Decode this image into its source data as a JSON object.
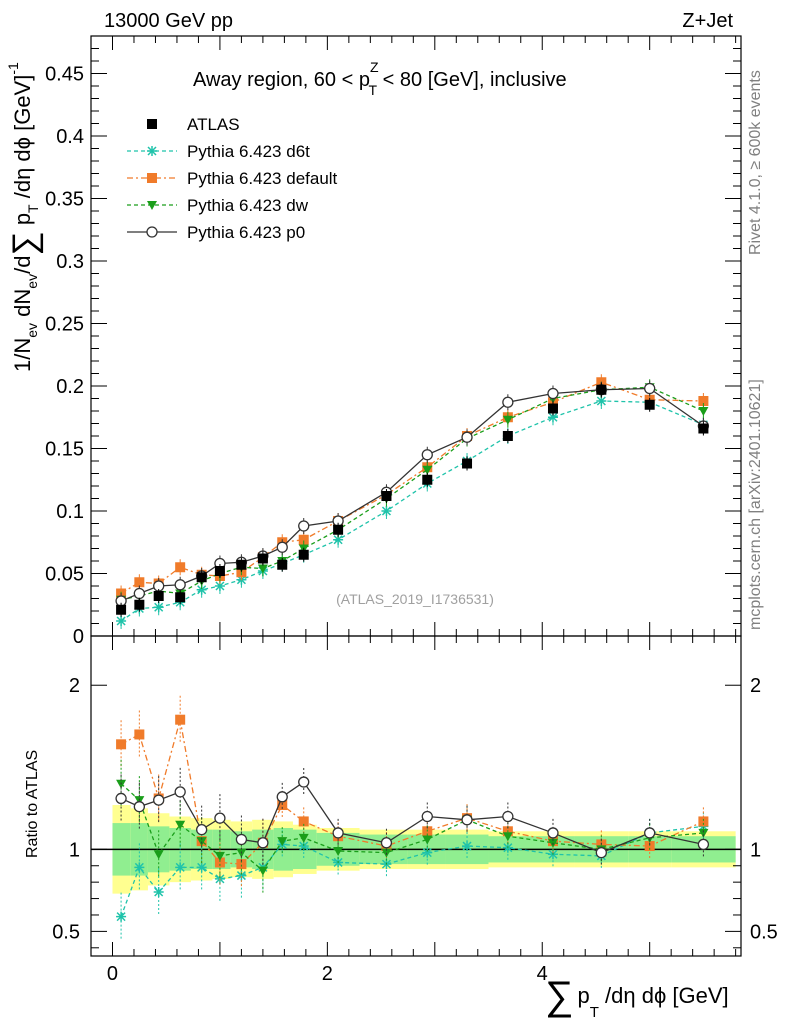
{
  "header": {
    "left": "13000 GeV pp",
    "right": "Z+Jet"
  },
  "side_text": {
    "rivet": "Rivet 4.1.0, ≥ 600k events",
    "mcplots": "mcplots.cern.ch [arXiv:2401.10621]"
  },
  "chart_data": {
    "type": "line",
    "title": "Away region, 60 < p_T^Z < 80 [GeV], inclusive",
    "title_parts": {
      "a": "Away region, 60 < p",
      "sup": "Z",
      "sub": "T",
      "b": " < 80 [GeV], inclusive"
    },
    "watermark": "(ATLAS_2019_I1736531)",
    "xlabel": {
      "sum": "∑",
      "p": "p",
      "sub": "T",
      "rest": " /dη dϕ [GeV]"
    },
    "ylabel_main": {
      "text": "1/N",
      "sub1": "ev",
      "mid": " dN",
      "sub2": "ev",
      "mid2": "/d",
      "sum": "∑",
      "p": " p",
      "sub3": "T",
      "rest": " /dη dϕ  [GeV]",
      "sup": "-1"
    },
    "ylabel_ratio": "Ratio to ATLAS",
    "xlim": [
      -0.2,
      5.85
    ],
    "ylim_main": [
      0,
      0.48
    ],
    "ylim_ratio": [
      0.35,
      2.3
    ],
    "x_ticks": [
      0,
      2,
      4
    ],
    "y_ticks_main": [
      0,
      0.05,
      0.1,
      0.15,
      0.2,
      0.25,
      0.3,
      0.35,
      0.4,
      0.45
    ],
    "y_tick_labels_main": [
      "0",
      "0.05",
      "0.1",
      "0.15",
      "0.2",
      "0.25",
      "0.3",
      "0.35",
      "0.4",
      "0.45"
    ],
    "y_ticks_ratio": [
      0.5,
      1,
      2
    ],
    "y_tick_labels_ratio": [
      "0.5",
      "1",
      "2"
    ],
    "x": [
      0.08,
      0.25,
      0.43,
      0.63,
      0.83,
      1.0,
      1.2,
      1.4,
      1.58,
      1.78,
      2.1,
      2.55,
      2.93,
      3.3,
      3.68,
      4.1,
      4.55,
      5.0,
      5.5
    ],
    "series": [
      {
        "name": "ATLAS",
        "color": "#000000",
        "marker": "square",
        "dash": "none",
        "values": [
          0.021,
          0.025,
          0.032,
          0.031,
          0.047,
          0.052,
          0.057,
          0.062,
          0.057,
          0.065,
          0.085,
          0.112,
          0.125,
          0.138,
          0.16,
          0.182,
          0.197,
          0.185,
          0.166
        ],
        "ratio": [
          1,
          1,
          1,
          1,
          1,
          1,
          1,
          1,
          1,
          1,
          1,
          1,
          1,
          1,
          1,
          1,
          1,
          1,
          1
        ]
      },
      {
        "name": "Pythia 6.423 d6t",
        "color": "#1fc3aa",
        "marker": "star",
        "dash": "4,3",
        "values": [
          0.012,
          0.022,
          0.023,
          0.027,
          0.037,
          0.04,
          0.045,
          0.052,
          0.058,
          0.065,
          0.077,
          0.1,
          0.122,
          0.14,
          0.16,
          0.175,
          0.188,
          0.187,
          0.169
        ],
        "ratio": [
          0.59,
          0.89,
          0.74,
          0.89,
          0.89,
          0.82,
          0.84,
          0.89,
          1.03,
          1.02,
          0.92,
          0.91,
          0.98,
          1.02,
          1.01,
          0.97,
          0.96,
          1.1,
          1.14
        ]
      },
      {
        "name": "Pythia 6.423 default",
        "color": "#f07b2a",
        "marker": "square",
        "dash": "6,3,2,3",
        "values": [
          0.034,
          0.043,
          0.042,
          0.055,
          0.049,
          0.048,
          0.051,
          0.063,
          0.075,
          0.077,
          0.092,
          0.113,
          0.135,
          0.16,
          0.175,
          0.187,
          0.203,
          0.189,
          0.188
        ],
        "ratio": [
          1.64,
          1.7,
          1.31,
          1.79,
          1.05,
          0.92,
          0.91,
          1.04,
          1.27,
          1.17,
          1.08,
          1.02,
          1.11,
          1.19,
          1.11,
          1.05,
          1.03,
          1.02,
          1.17
        ]
      },
      {
        "name": "Pythia 6.423 dw",
        "color": "#1a9e1a",
        "marker": "triangle-down",
        "dash": "4,3",
        "values": [
          0.029,
          0.032,
          0.036,
          0.034,
          0.044,
          0.05,
          0.055,
          0.054,
          0.06,
          0.07,
          0.085,
          0.11,
          0.133,
          0.158,
          0.173,
          0.19,
          0.197,
          0.199,
          0.18
        ],
        "ratio": [
          1.4,
          1.3,
          0.97,
          1.15,
          1.05,
          0.96,
          0.98,
          0.87,
          1.05,
          1.07,
          0.99,
          0.98,
          1.06,
          1.18,
          1.08,
          1.04,
          1.0,
          1.07,
          1.1
        ]
      },
      {
        "name": "Pythia 6.423 p0",
        "color": "#333333",
        "marker": "open-circle",
        "dash": "none",
        "values": [
          0.028,
          0.034,
          0.04,
          0.041,
          0.048,
          0.058,
          0.059,
          0.064,
          0.071,
          0.088,
          0.092,
          0.115,
          0.145,
          0.159,
          0.187,
          0.194,
          0.197,
          0.198,
          0.168
        ],
        "ratio": [
          1.31,
          1.26,
          1.3,
          1.35,
          1.12,
          1.19,
          1.06,
          1.04,
          1.32,
          1.41,
          1.1,
          1.04,
          1.2,
          1.18,
          1.2,
          1.1,
          0.98,
          1.1,
          1.03
        ]
      }
    ],
    "ratio_bands_x": [
      0.0,
      0.17,
      0.33,
      0.53,
      0.73,
      0.93,
      1.1,
      1.3,
      1.5,
      1.68,
      1.9,
      2.3,
      2.75,
      3.1,
      3.5,
      3.9,
      4.3,
      4.8,
      5.2,
      5.8
    ],
    "ratio_band_inner": [
      0.16,
      0.16,
      0.14,
      0.13,
      0.12,
      0.12,
      0.11,
      0.12,
      0.13,
      0.12,
      0.1,
      0.09,
      0.09,
      0.09,
      0.08,
      0.08,
      0.08,
      0.08,
      0.08
    ],
    "ratio_band_outer": [
      0.27,
      0.25,
      0.22,
      0.2,
      0.19,
      0.18,
      0.17,
      0.18,
      0.17,
      0.15,
      0.13,
      0.12,
      0.12,
      0.12,
      0.11,
      0.11,
      0.11,
      0.11,
      0.11
    ],
    "band_colors": {
      "inner": "#90ee90",
      "outer": "#ffff90"
    }
  }
}
